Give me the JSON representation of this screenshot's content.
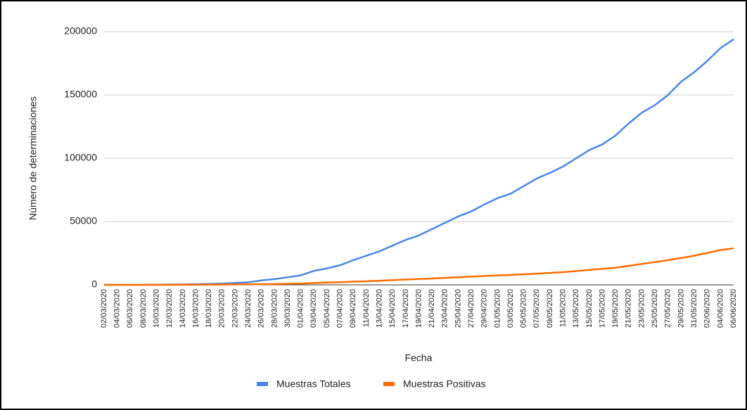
{
  "chart_data": {
    "type": "line",
    "x_label": "Fecha",
    "y_label": "Número de determinaciones",
    "categories": [
      "02/03/2020",
      null,
      "04/03/2020",
      null,
      "06/03/2020",
      null,
      "08/03/2020",
      null,
      "10/03/2020",
      null,
      "12/03/2020",
      null,
      "14/03/2020",
      null,
      "16/03/2020",
      null,
      "18/03/2020",
      null,
      "20/03/2020",
      null,
      "22/03/2020",
      null,
      "24/03/2020",
      null,
      "26/03/2020",
      null,
      "28/03/2020",
      null,
      "30/03/2020",
      null,
      "01/04/2020",
      null,
      "03/04/2020",
      null,
      "05/04/2020",
      null,
      "07/04/2020",
      null,
      "09/04/2020",
      null,
      "11/04/2020",
      null,
      "13/04/2020",
      null,
      "15/04/2020",
      null,
      "17/04/2020",
      null,
      "19/04/2020",
      null,
      "21/04/2020",
      null,
      "23/04/2020",
      null,
      "25/04/2020",
      null,
      "27/04/2020",
      null,
      "29/04/2020",
      null,
      "01/05/2020",
      null,
      "03/05/2020",
      null,
      "05/05/2020",
      null,
      "07/05/2020",
      null,
      "09/05/2020",
      null,
      "11/05/2020",
      null,
      "13/05/2020",
      null,
      "15/05/2020",
      null,
      "17/05/2020",
      null,
      "19/05/2020",
      null,
      "21/05/2020",
      null,
      "23/05/2020",
      null,
      "25/05/2020",
      null,
      "27/05/2020",
      null,
      "29/05/2020",
      null,
      "31/05/2020",
      null,
      "02/06/2020",
      null,
      "04/06/2020",
      null,
      "06/06/2020"
    ],
    "series": [
      {
        "name": "Muestras Totales",
        "color": "#4a86e8",
        "values": [
          0,
          0,
          0,
          0,
          0,
          25,
          50,
          75,
          100,
          150,
          200,
          250,
          300,
          400,
          500,
          600,
          700,
          850,
          1000,
          1250,
          1500,
          1750,
          2000,
          2750,
          3500,
          4000,
          4500,
          5250,
          6000,
          6750,
          7500,
          9250,
          11000,
          12000,
          13000,
          14250,
          15500,
          17500,
          19500,
          21250,
          23000,
          24750,
          26500,
          28750,
          31000,
          33250,
          35500,
          37250,
          39000,
          41500,
          44000,
          46500,
          49000,
          51500,
          54000,
          56000,
          58000,
          60750,
          63500,
          66000,
          68500,
          70250,
          72000,
          75000,
          78000,
          81000,
          84000,
          86250,
          88500,
          91000,
          93500,
          96750,
          100000,
          103250,
          106500,
          108750,
          111000,
          114500,
          118000,
          122750,
          127500,
          131750,
          136000,
          139000,
          142000,
          146000,
          150000,
          155250,
          160500,
          164250,
          168000,
          172500,
          177000,
          182000,
          187000,
          190500,
          194000
        ]
      },
      {
        "name": "Muestras Positivas",
        "color": "#ff6d01",
        "values": [
          0,
          0,
          0,
          0,
          0,
          0,
          0,
          5,
          10,
          20,
          30,
          40,
          50,
          75,
          100,
          125,
          150,
          175,
          200,
          250,
          300,
          350,
          400,
          450,
          500,
          550,
          600,
          700,
          800,
          900,
          1000,
          1200,
          1400,
          1600,
          1800,
          1950,
          2100,
          2300,
          2500,
          2650,
          2800,
          3000,
          3200,
          3450,
          3700,
          3950,
          4200,
          4400,
          4600,
          4800,
          5000,
          5250,
          5500,
          5750,
          6000,
          6250,
          6500,
          6750,
          7000,
          7200,
          7400,
          7600,
          7800,
          8050,
          8300,
          8550,
          8800,
          9100,
          9400,
          9700,
          10000,
          10450,
          10900,
          11350,
          11800,
          12200,
          12600,
          13050,
          13500,
          14250,
          15000,
          15750,
          16500,
          17250,
          18000,
          18750,
          19500,
          20350,
          21200,
          22100,
          23000,
          24100,
          25200,
          26350,
          27500,
          28150,
          28800
        ]
      }
    ],
    "ylim": [
      0,
      200000
    ],
    "yticks": [
      0,
      50000,
      100000,
      150000,
      200000
    ],
    "grid": true,
    "legend": "bottom"
  }
}
